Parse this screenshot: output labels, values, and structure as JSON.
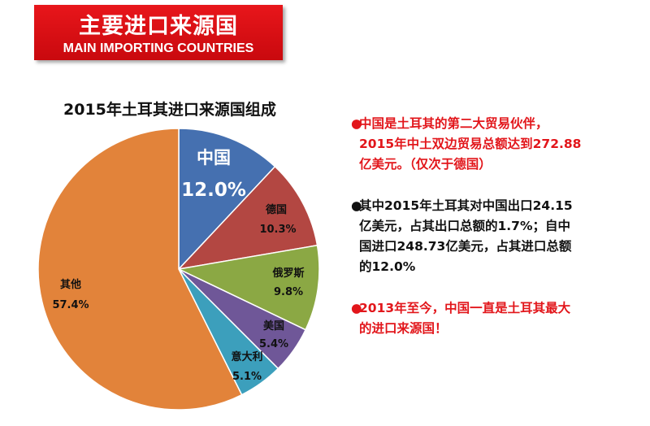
{
  "banner": {
    "title_cn": "主要进口来源国",
    "title_en": "MAIN IMPORTING COUNTRIES"
  },
  "chart_data": {
    "type": "pie",
    "title": "2015年土耳其进口来源国组成",
    "slices": [
      {
        "label": "中国",
        "value": 12.0,
        "display": "12.0%",
        "color": "#4570b0"
      },
      {
        "label": "德国",
        "value": 10.3,
        "display": "10.3%",
        "color": "#b34742"
      },
      {
        "label": "俄罗斯",
        "value": 9.8,
        "display": "9.8%",
        "color": "#8ba844"
      },
      {
        "label": "美国",
        "value": 5.4,
        "display": "5.4%",
        "color": "#6f5798"
      },
      {
        "label": "意大利",
        "value": 5.1,
        "display": "5.1%",
        "color": "#3c9fbc"
      },
      {
        "label": "其他",
        "value": 57.4,
        "display": "57.4%",
        "color": "#e2833a"
      }
    ]
  },
  "notes": [
    {
      "lines": [
        "中国是土耳其的第二大贸易伙伴，",
        "2015年中土双边贸易总额达到272.88",
        "亿美元。（仅次于德国）"
      ],
      "color": "red"
    },
    {
      "lines": [
        "其中2015年土耳其对中国出口24.15",
        "亿美元，占其出口总额的1.7%；自中",
        "国进口248.73亿美元，占其进口总额",
        "的12.0%"
      ],
      "color": "black"
    },
    {
      "lines": [
        "2013年至今，中国一直是土耳其最大",
        "的进口来源国！"
      ],
      "color": "red"
    }
  ],
  "bullet": "●"
}
